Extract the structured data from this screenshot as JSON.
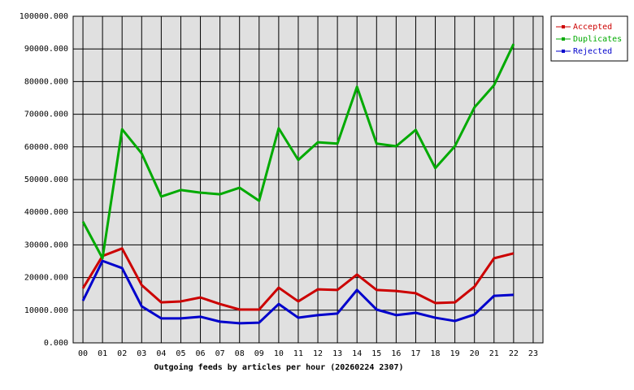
{
  "chart_data": {
    "type": "line",
    "title": "Outgoing feeds by articles per hour (20260224 2307)",
    "categories": [
      "00",
      "01",
      "02",
      "03",
      "04",
      "05",
      "06",
      "07",
      "08",
      "09",
      "10",
      "11",
      "12",
      "13",
      "14",
      "15",
      "16",
      "17",
      "18",
      "19",
      "20",
      "21",
      "22",
      "23"
    ],
    "series": [
      {
        "name": "Accepted",
        "color": "#cc0000",
        "values": [
          16700,
          26600,
          28900,
          17700,
          12400,
          12700,
          13900,
          11900,
          10200,
          10200,
          16900,
          12700,
          16400,
          16200,
          20900,
          16200,
          15900,
          15200,
          12200,
          12400,
          17200,
          25900,
          27400,
          null
        ]
      },
      {
        "name": "Duplicates",
        "color": "#00aa00",
        "values": [
          37100,
          25900,
          65400,
          58000,
          44800,
          46800,
          46000,
          45500,
          47500,
          43500,
          65700,
          56000,
          61400,
          61000,
          78400,
          61000,
          60200,
          65200,
          53500,
          60200,
          72100,
          78900,
          91500,
          null
        ]
      },
      {
        "name": "Rejected",
        "color": "#0000cc",
        "values": [
          12900,
          25100,
          22900,
          11200,
          7500,
          7500,
          8000,
          6500,
          6000,
          6200,
          11900,
          7700,
          8500,
          9000,
          16200,
          10200,
          8500,
          9200,
          7700,
          6700,
          8700,
          14400,
          14700,
          null
        ]
      }
    ],
    "ylim": [
      0,
      100000
    ],
    "yticks": [
      {
        "value": 0,
        "label": "0.000"
      },
      {
        "value": 10000,
        "label": "10000.000"
      },
      {
        "value": 20000,
        "label": "20000.000"
      },
      {
        "value": 30000,
        "label": "30000.000"
      },
      {
        "value": 40000,
        "label": "40000.000"
      },
      {
        "value": 50000,
        "label": "50000.000"
      },
      {
        "value": 60000,
        "label": "60000.000"
      },
      {
        "value": 70000,
        "label": "70000.000"
      },
      {
        "value": 80000,
        "label": "80000.000"
      },
      {
        "value": 90000,
        "label": "90000.000"
      },
      {
        "value": 100000,
        "label": "100000.000"
      }
    ],
    "grid": true,
    "legend": "right"
  }
}
